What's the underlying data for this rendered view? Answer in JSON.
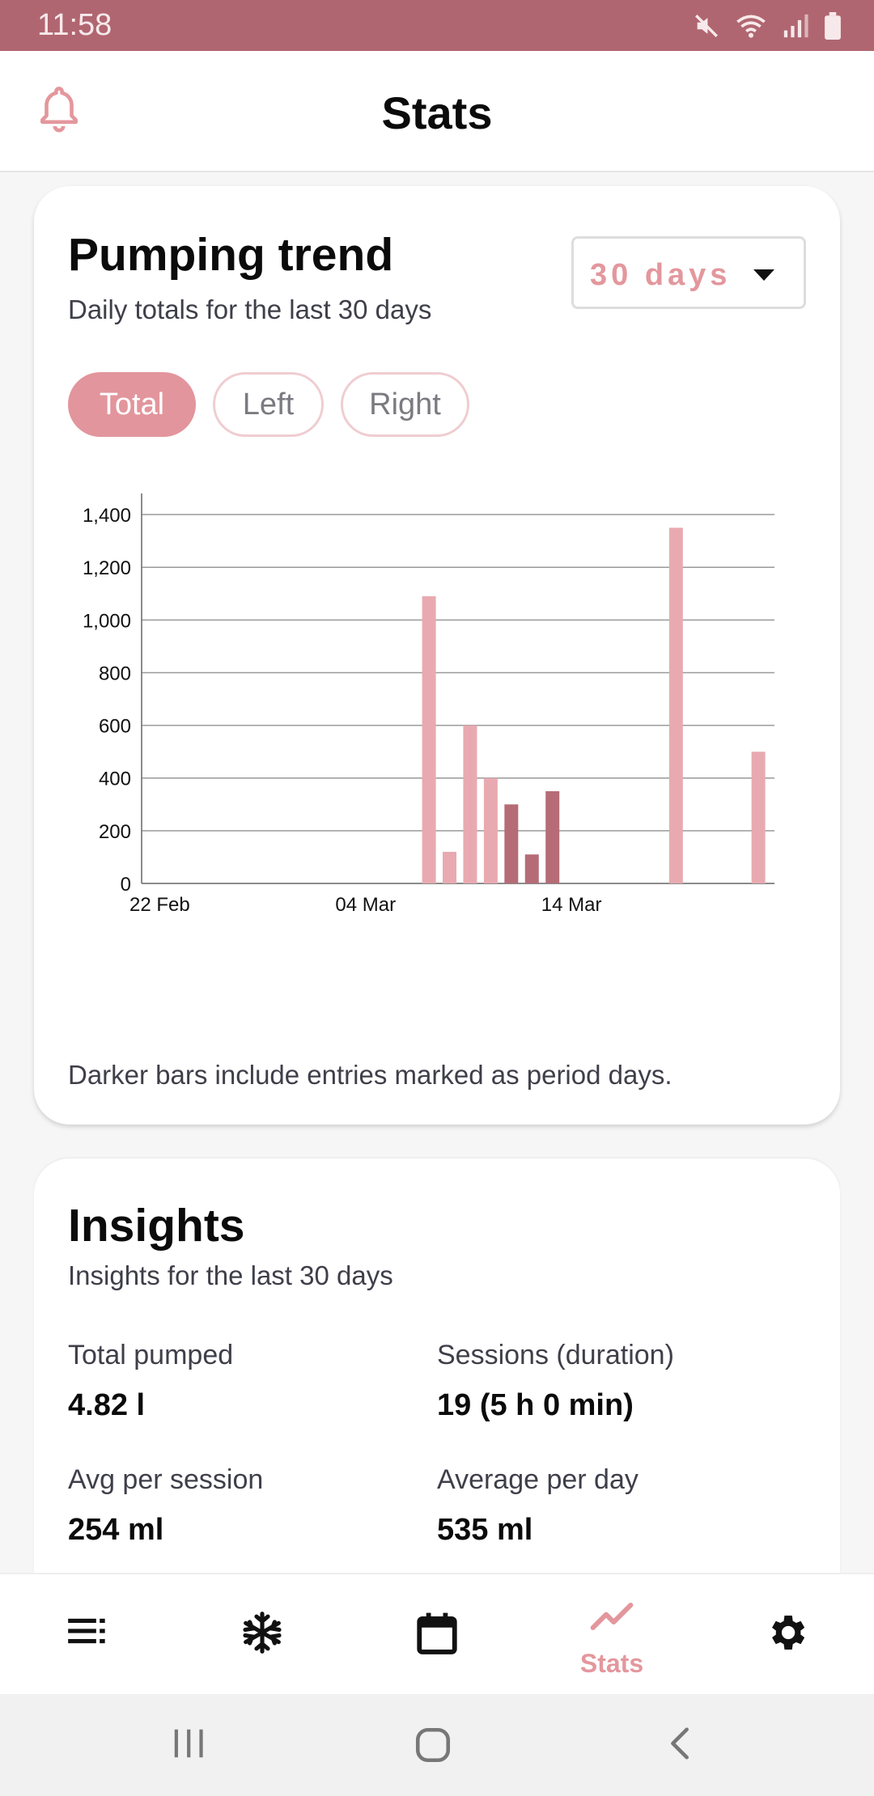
{
  "status": {
    "time": "11:58"
  },
  "app": {
    "title": "Stats"
  },
  "trend": {
    "title": "Pumping trend",
    "subtitle": "Daily totals for the last 30 days",
    "range_value": "30 days",
    "chips": [
      {
        "label": "Total",
        "active": true
      },
      {
        "label": "Left",
        "active": false
      },
      {
        "label": "Right",
        "active": false
      }
    ],
    "note": "Darker bars include entries marked as period days."
  },
  "chart_data": {
    "type": "bar",
    "x_tick_labels": [
      "22 Feb",
      "04 Mar",
      "14 Mar"
    ],
    "x_tick_days": [
      0,
      10,
      20
    ],
    "y_tick_labels": [
      "0",
      "200",
      "400",
      "600",
      "800",
      "1,000",
      "1,200",
      "1,400"
    ],
    "ylim": [
      0,
      1480
    ],
    "grid": true,
    "colors": {
      "normal": "#e8aab0",
      "period": "#b56c76"
    },
    "bars": [
      {
        "day": 13.8,
        "value": 1090,
        "period": false
      },
      {
        "day": 14.8,
        "value": 120,
        "period": false
      },
      {
        "day": 15.8,
        "value": 600,
        "period": false
      },
      {
        "day": 16.8,
        "value": 400,
        "period": false
      },
      {
        "day": 17.8,
        "value": 300,
        "period": true
      },
      {
        "day": 18.8,
        "value": 110,
        "period": true
      },
      {
        "day": 19.8,
        "value": 350,
        "period": true
      },
      {
        "day": 25.8,
        "value": 1350,
        "period": false
      },
      {
        "day": 29.8,
        "value": 500,
        "period": false
      }
    ]
  },
  "insights": {
    "title": "Insights",
    "subtitle": "Insights for the last 30 days",
    "items": [
      {
        "label": "Total pumped",
        "value": "4.82 l"
      },
      {
        "label": "Sessions (duration)",
        "value": "19 (5 h 0 min)"
      },
      {
        "label": "Avg per session",
        "value": "254 ml"
      },
      {
        "label": "Average per day",
        "value": "535 ml"
      }
    ]
  },
  "nav": {
    "items": [
      {
        "icon": "list-icon"
      },
      {
        "icon": "snowflake-icon"
      },
      {
        "icon": "calendar-icon"
      },
      {
        "icon": "trend-icon",
        "label": "Stats",
        "active": true
      },
      {
        "icon": "gear-icon"
      }
    ]
  }
}
